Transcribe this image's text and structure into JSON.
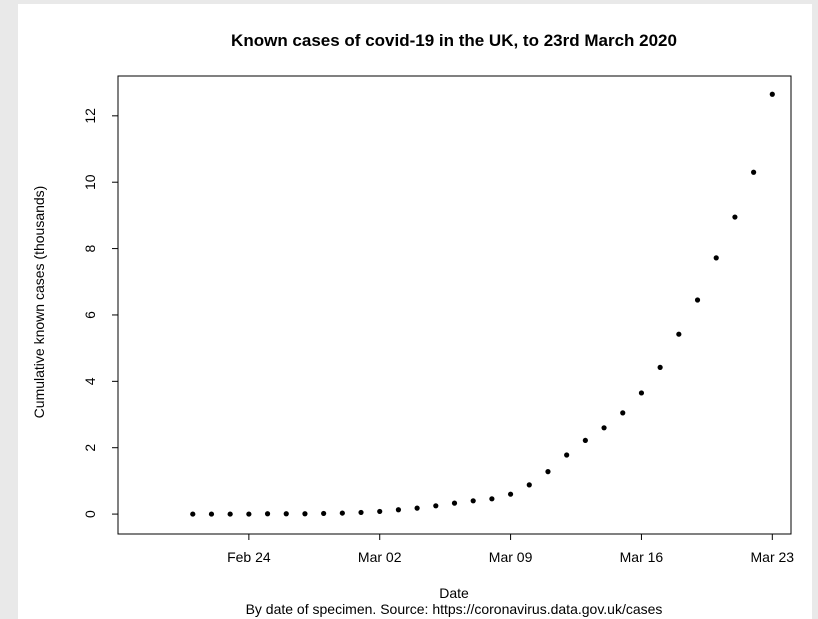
{
  "chart_data": {
    "type": "scatter",
    "title": "Known cases of covid-19 in the UK, to 23rd March 2020",
    "xlabel": "Date",
    "ylabel": "Cumulative known cases (thousands)",
    "caption": "By date of specimen. Source: https://coronavirus.data.gov.uk/cases",
    "x_ticks": [
      {
        "date": "2020-02-24",
        "label": "Feb 24"
      },
      {
        "date": "2020-03-02",
        "label": "Mar 02"
      },
      {
        "date": "2020-03-09",
        "label": "Mar 09"
      },
      {
        "date": "2020-03-16",
        "label": "Mar 16"
      },
      {
        "date": "2020-03-23",
        "label": "Mar 23"
      }
    ],
    "y_ticks": [
      0,
      2,
      4,
      6,
      8,
      10,
      12
    ],
    "xlim": [
      "2020-02-17",
      "2020-03-24"
    ],
    "ylim": [
      -0.6,
      13.2
    ],
    "grid": false,
    "marker_color": "#000000",
    "points": [
      {
        "x": "2020-02-21",
        "y": 0.0
      },
      {
        "x": "2020-02-22",
        "y": 0.0
      },
      {
        "x": "2020-02-23",
        "y": 0.0
      },
      {
        "x": "2020-02-24",
        "y": 0.0
      },
      {
        "x": "2020-02-25",
        "y": 0.01
      },
      {
        "x": "2020-02-26",
        "y": 0.01
      },
      {
        "x": "2020-02-27",
        "y": 0.01
      },
      {
        "x": "2020-02-28",
        "y": 0.02
      },
      {
        "x": "2020-02-29",
        "y": 0.03
      },
      {
        "x": "2020-03-01",
        "y": 0.05
      },
      {
        "x": "2020-03-02",
        "y": 0.08
      },
      {
        "x": "2020-03-03",
        "y": 0.13
      },
      {
        "x": "2020-03-04",
        "y": 0.18
      },
      {
        "x": "2020-03-05",
        "y": 0.25
      },
      {
        "x": "2020-03-06",
        "y": 0.33
      },
      {
        "x": "2020-03-07",
        "y": 0.4
      },
      {
        "x": "2020-03-08",
        "y": 0.46
      },
      {
        "x": "2020-03-09",
        "y": 0.6
      },
      {
        "x": "2020-03-10",
        "y": 0.88
      },
      {
        "x": "2020-03-11",
        "y": 1.28
      },
      {
        "x": "2020-03-12",
        "y": 1.78
      },
      {
        "x": "2020-03-13",
        "y": 2.22
      },
      {
        "x": "2020-03-14",
        "y": 2.6
      },
      {
        "x": "2020-03-15",
        "y": 3.05
      },
      {
        "x": "2020-03-16",
        "y": 3.65
      },
      {
        "x": "2020-03-17",
        "y": 4.42
      },
      {
        "x": "2020-03-18",
        "y": 5.42
      },
      {
        "x": "2020-03-19",
        "y": 6.45
      },
      {
        "x": "2020-03-20",
        "y": 7.72
      },
      {
        "x": "2020-03-21",
        "y": 8.95
      },
      {
        "x": "2020-03-22",
        "y": 10.3
      },
      {
        "x": "2020-03-23",
        "y": 12.65
      }
    ]
  }
}
